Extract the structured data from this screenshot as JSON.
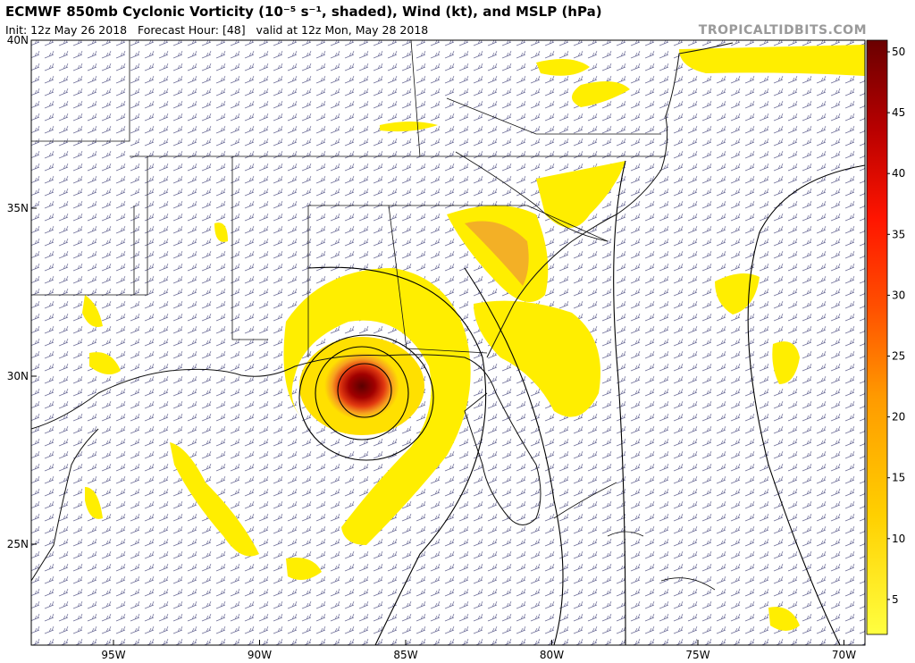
{
  "header": {
    "title": "ECMWF 850mb Cyclonic Vorticity (10⁻⁵ s⁻¹, shaded), Wind (kt), and MSLP (hPa)",
    "subtitle": "Init: 12z May 26 2018   Forecast Hour: [48]   valid at 12z Mon, May 28 2018",
    "site": "TROPICALTIDBITS.COM"
  },
  "latitude_labels": [
    "40N",
    "35N",
    "30N",
    "25N"
  ],
  "longitude_labels": [
    "95W",
    "90W",
    "85W",
    "80W",
    "75W",
    "70W"
  ],
  "colorbar_labels": [
    "50",
    "45",
    "40",
    "35",
    "30",
    "25",
    "20",
    "15",
    "10",
    "5"
  ]
}
